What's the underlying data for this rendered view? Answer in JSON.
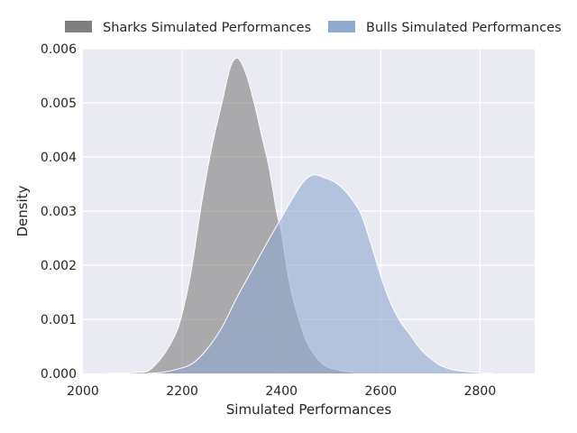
{
  "chart_data": {
    "type": "area",
    "title": "",
    "xlabel": "Simulated Performances",
    "ylabel": "Density",
    "xlim": [
      2000,
      2910
    ],
    "ylim": [
      0,
      0.006
    ],
    "xticks": [
      2000,
      2200,
      2400,
      2600,
      2800
    ],
    "xtick_labels": [
      "2000",
      "2200",
      "2400",
      "2600",
      "2800"
    ],
    "yticks": [
      0,
      0.001,
      0.002,
      0.003,
      0.004,
      0.005,
      0.006
    ],
    "ytick_labels": [
      "0.000",
      "0.001",
      "0.002",
      "0.003",
      "0.004",
      "0.005",
      "0.006"
    ],
    "grid": true,
    "legend_position": "top",
    "series": [
      {
        "name": "Sharks Simulated Performances",
        "color": "#7f7f7f",
        "points": [
          [
            2040,
            0.0
          ],
          [
            2090,
            1e-05
          ],
          [
            2110,
            2e-05
          ],
          [
            2130,
            4e-05
          ],
          [
            2150,
            0.0002
          ],
          [
            2170,
            0.00045
          ],
          [
            2190,
            0.0008
          ],
          [
            2205,
            0.0013
          ],
          [
            2220,
            0.002
          ],
          [
            2240,
            0.0032
          ],
          [
            2260,
            0.0042
          ],
          [
            2280,
            0.005
          ],
          [
            2295,
            0.0056
          ],
          [
            2305,
            0.0058
          ],
          [
            2315,
            0.0058
          ],
          [
            2330,
            0.0055
          ],
          [
            2345,
            0.005
          ],
          [
            2360,
            0.0044
          ],
          [
            2375,
            0.0038
          ],
          [
            2390,
            0.003
          ],
          [
            2400,
            0.0026
          ],
          [
            2410,
            0.002
          ],
          [
            2420,
            0.0015
          ],
          [
            2435,
            0.001
          ],
          [
            2450,
            0.0006
          ],
          [
            2470,
            0.0003
          ],
          [
            2490,
            0.00013
          ],
          [
            2520,
            5e-05
          ],
          [
            2560,
            0.0
          ]
        ]
      },
      {
        "name": "Bulls Simulated Performances",
        "color": "#8fa9cf",
        "points": [
          [
            2130,
            0.0
          ],
          [
            2160,
            2e-05
          ],
          [
            2190,
            8e-05
          ],
          [
            2220,
            0.00018
          ],
          [
            2250,
            0.00045
          ],
          [
            2280,
            0.00085
          ],
          [
            2310,
            0.0014
          ],
          [
            2340,
            0.0019
          ],
          [
            2370,
            0.0024
          ],
          [
            2395,
            0.0028
          ],
          [
            2420,
            0.0032
          ],
          [
            2445,
            0.00355
          ],
          [
            2465,
            0.00367
          ],
          [
            2485,
            0.00362
          ],
          [
            2510,
            0.00352
          ],
          [
            2535,
            0.0033
          ],
          [
            2560,
            0.00295
          ],
          [
            2580,
            0.0024
          ],
          [
            2600,
            0.0018
          ],
          [
            2620,
            0.0013
          ],
          [
            2640,
            0.00095
          ],
          [
            2660,
            0.0007
          ],
          [
            2680,
            0.00045
          ],
          [
            2700,
            0.00028
          ],
          [
            2720,
            0.00015
          ],
          [
            2750,
            6e-05
          ],
          [
            2790,
            2e-05
          ],
          [
            2830,
            0.0
          ]
        ]
      }
    ]
  }
}
